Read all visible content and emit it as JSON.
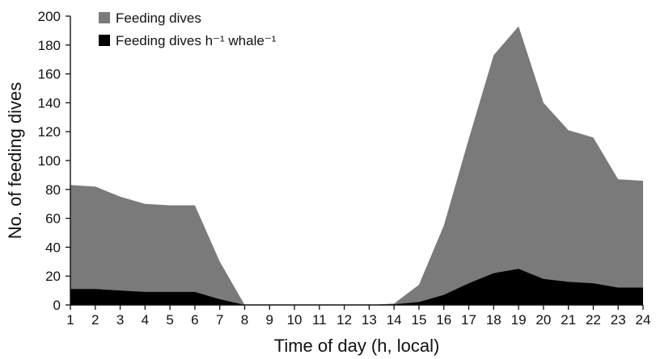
{
  "chart_data": {
    "type": "area",
    "xlabel": "Time of day (h, local)",
    "ylabel": "No. of feeding dives",
    "ylim": [
      0,
      200
    ],
    "xlim": [
      1,
      24
    ],
    "x": [
      1,
      2,
      3,
      4,
      5,
      6,
      7,
      8,
      9,
      10,
      11,
      12,
      13,
      14,
      15,
      16,
      17,
      18,
      19,
      20,
      21,
      22,
      23,
      24
    ],
    "x_ticks": [
      "1",
      "2",
      "3",
      "4",
      "5",
      "6",
      "7",
      "8",
      "9",
      "10",
      "11",
      "12",
      "13",
      "14",
      "15",
      "16",
      "17",
      "18",
      "19",
      "20",
      "21",
      "22",
      "23",
      "24"
    ],
    "y_ticks": [
      "0",
      "20",
      "40",
      "60",
      "80",
      "100",
      "120",
      "140",
      "160",
      "180",
      "200"
    ],
    "legend_position": "top-left",
    "grid": false,
    "series": [
      {
        "name": "Feeding dives",
        "color": "#7a7a7a",
        "values": [
          83,
          82,
          75,
          70,
          69,
          69,
          30,
          0,
          0,
          0,
          0,
          0,
          0,
          1,
          14,
          55,
          115,
          173,
          193,
          140,
          121,
          116,
          87,
          86
        ]
      },
      {
        "name": "Feeding dives h⁻¹ whale⁻¹",
        "color": "#000000",
        "values": [
          11,
          11,
          10,
          9,
          9,
          9,
          4,
          0,
          0,
          0,
          0,
          0,
          0,
          0.5,
          2,
          7,
          15,
          22,
          25,
          18,
          16,
          15,
          12,
          12
        ]
      }
    ]
  }
}
